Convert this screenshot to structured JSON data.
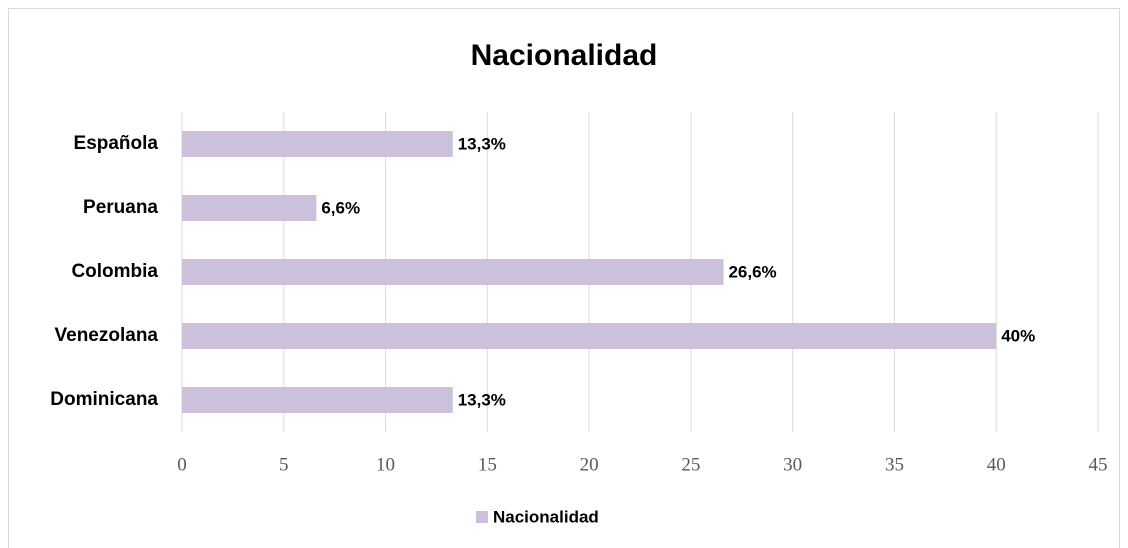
{
  "chart_data": {
    "type": "bar",
    "orientation": "horizontal",
    "title": "Nacionalidad",
    "categories": [
      "Española",
      "Peruana",
      "Colombia",
      "Venezolana",
      "Dominicana"
    ],
    "series": [
      {
        "name": "Nacionalidad",
        "color": "#ccc0da",
        "values": [
          13.3,
          6.6,
          26.6,
          40,
          13.3
        ],
        "value_labels": [
          "13,3%",
          "6,6%",
          "26,6%",
          "40%",
          "13,3%"
        ]
      }
    ],
    "xlim": [
      0,
      45
    ],
    "xticks": [
      0,
      5,
      10,
      15,
      20,
      25,
      30,
      35,
      40,
      45
    ],
    "grid": true,
    "legend": "bottom"
  }
}
